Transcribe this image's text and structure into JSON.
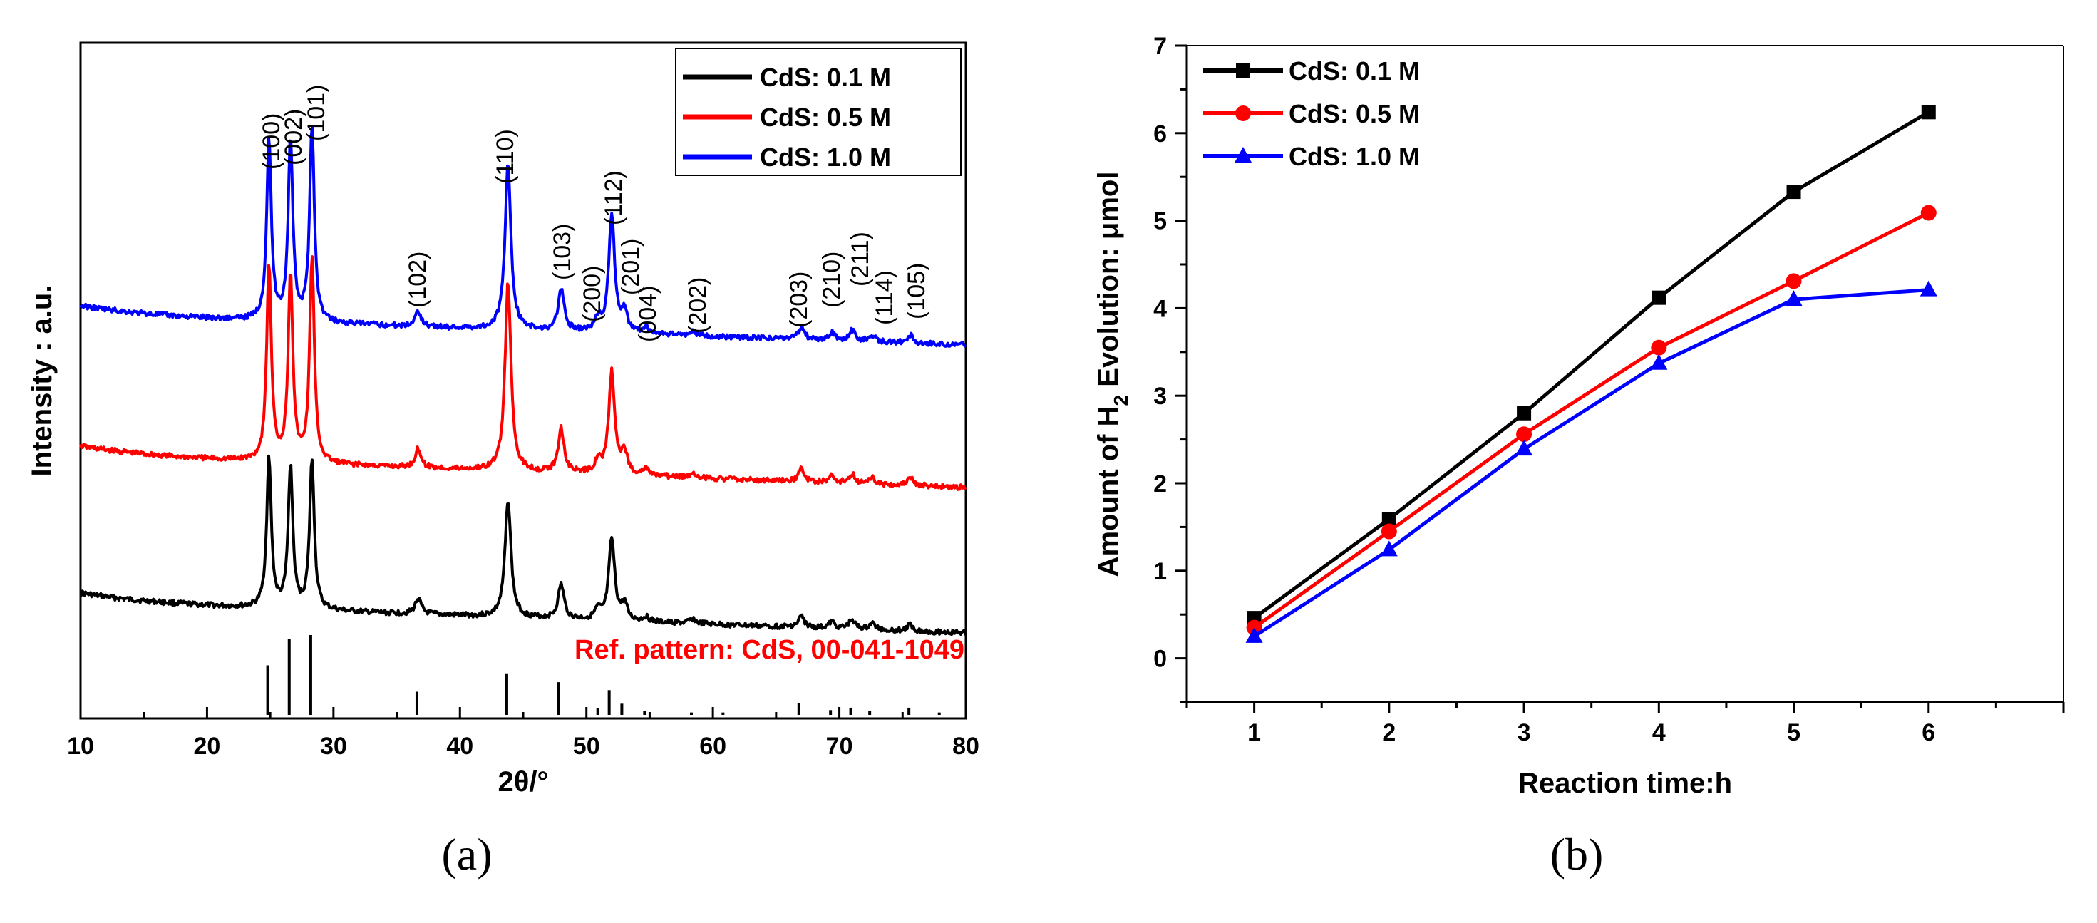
{
  "chart_data": [
    {
      "panel": "(a)",
      "type": "line",
      "title": "",
      "xlabel": "2θ/°",
      "ylabel": "Intensity : a.u.",
      "xlim": [
        10,
        80
      ],
      "xticks": [
        10,
        20,
        30,
        40,
        50,
        60,
        70,
        80
      ],
      "ylabel_units": "a.u.",
      "legend_position": "top-right",
      "series": [
        {
          "name": "CdS: 0.1  M",
          "color": "#000000",
          "offset": 0.0
        },
        {
          "name": "CdS: 0.5  M",
          "color": "#ff0000",
          "offset": 1.0
        },
        {
          "name": "CdS: 1.0  M",
          "color": "#0000ff",
          "offset": 2.0
        }
      ],
      "peaks": [
        {
          "two_theta": 24.9,
          "hkl": "(100)",
          "h": [
            0.95,
            1.25,
            1.15
          ]
        },
        {
          "two_theta": 26.6,
          "hkl": "(002)",
          "h": [
            0.9,
            1.2,
            1.15
          ]
        },
        {
          "two_theta": 28.3,
          "hkl": "(101)",
          "h": [
            0.95,
            1.3,
            1.25
          ]
        },
        {
          "two_theta": 36.7,
          "hkl": "(102)",
          "h": [
            0.1,
            0.12,
            0.1
          ]
        },
        {
          "two_theta": 43.8,
          "hkl": "(110)",
          "h": [
            0.75,
            1.2,
            1.05
          ]
        },
        {
          "two_theta": 48.0,
          "hkl": "(103)",
          "h": [
            0.22,
            0.28,
            0.27
          ]
        },
        {
          "two_theta": 50.9,
          "hkl": "(200)",
          "h": [
            0.06,
            0.08,
            0.08
          ]
        },
        {
          "two_theta": 52.0,
          "hkl": "(112)",
          "h": [
            0.52,
            0.65,
            0.75
          ]
        },
        {
          "two_theta": 53.0,
          "hkl": "(201)",
          "h": [
            0.1,
            0.14,
            0.13
          ]
        },
        {
          "two_theta": 54.7,
          "hkl": "(004)",
          "h": [
            0.03,
            0.04,
            0.04
          ]
        },
        {
          "two_theta": 58.4,
          "hkl": "(202)",
          "h": [
            0.03,
            0.03,
            0.03
          ]
        },
        {
          "two_theta": 67.0,
          "hkl": "(203)",
          "h": [
            0.07,
            0.08,
            0.08
          ]
        },
        {
          "two_theta": 69.4,
          "hkl": "(210)",
          "h": [
            0.04,
            0.04,
            0.05
          ]
        },
        {
          "two_theta": 71.0,
          "hkl": "(211)",
          "h": [
            0.06,
            0.06,
            0.07
          ]
        },
        {
          "two_theta": 72.6,
          "hkl": "(114)",
          "h": [
            0.04,
            0.04,
            0.04
          ]
        },
        {
          "two_theta": 75.6,
          "hkl": "(105)",
          "h": [
            0.04,
            0.05,
            0.05
          ]
        }
      ],
      "reference": {
        "label": "Ref. pattern: CdS, 00-041-1049",
        "color": "#ff0000",
        "lines": [
          {
            "two_theta": 24.8,
            "rel": 0.62
          },
          {
            "two_theta": 26.5,
            "rel": 0.95
          },
          {
            "two_theta": 28.2,
            "rel": 1.0
          },
          {
            "two_theta": 36.6,
            "rel": 0.29
          },
          {
            "two_theta": 43.7,
            "rel": 0.52
          },
          {
            "two_theta": 47.8,
            "rel": 0.41
          },
          {
            "two_theta": 50.9,
            "rel": 0.08
          },
          {
            "two_theta": 51.8,
            "rel": 0.31
          },
          {
            "two_theta": 52.8,
            "rel": 0.14
          },
          {
            "two_theta": 54.6,
            "rel": 0.05
          },
          {
            "two_theta": 58.3,
            "rel": 0.03
          },
          {
            "two_theta": 60.8,
            "rel": 0.03
          },
          {
            "two_theta": 66.8,
            "rel": 0.15
          },
          {
            "two_theta": 69.3,
            "rel": 0.06
          },
          {
            "two_theta": 70.9,
            "rel": 0.09
          },
          {
            "two_theta": 72.4,
            "rel": 0.05
          },
          {
            "two_theta": 75.5,
            "rel": 0.09
          },
          {
            "two_theta": 77.9,
            "rel": 0.03
          }
        ]
      }
    },
    {
      "panel": "(b)",
      "type": "line",
      "title": "",
      "xlabel": "Reaction time:h",
      "ylabel": "Amount of H2 Evolution: μmol",
      "ylabel_parts": {
        "pre": "Amount of H",
        "sub": "2",
        "post": " Evolution: μmol"
      },
      "xlim": [
        0.5,
        7
      ],
      "ylim": [
        -0.5,
        7
      ],
      "xticks": [
        1,
        2,
        3,
        4,
        5,
        6
      ],
      "yticks": [
        0,
        1,
        2,
        3,
        4,
        5,
        6,
        7
      ],
      "legend_position": "top-left",
      "x": [
        1,
        2,
        3,
        4,
        5,
        6
      ],
      "series": [
        {
          "name": "CdS: 0.1  M",
          "color": "#000000",
          "marker": "square",
          "values": [
            0.46,
            1.59,
            2.8,
            4.12,
            5.33,
            6.24
          ]
        },
        {
          "name": "CdS: 0.5  M",
          "color": "#ff0000",
          "marker": "circle",
          "values": [
            0.35,
            1.45,
            2.56,
            3.55,
            4.31,
            5.09
          ]
        },
        {
          "name": "CdS: 1.0  M",
          "color": "#0000ff",
          "marker": "triangle",
          "values": [
            0.25,
            1.24,
            2.39,
            3.37,
            4.1,
            4.21
          ]
        }
      ]
    }
  ]
}
